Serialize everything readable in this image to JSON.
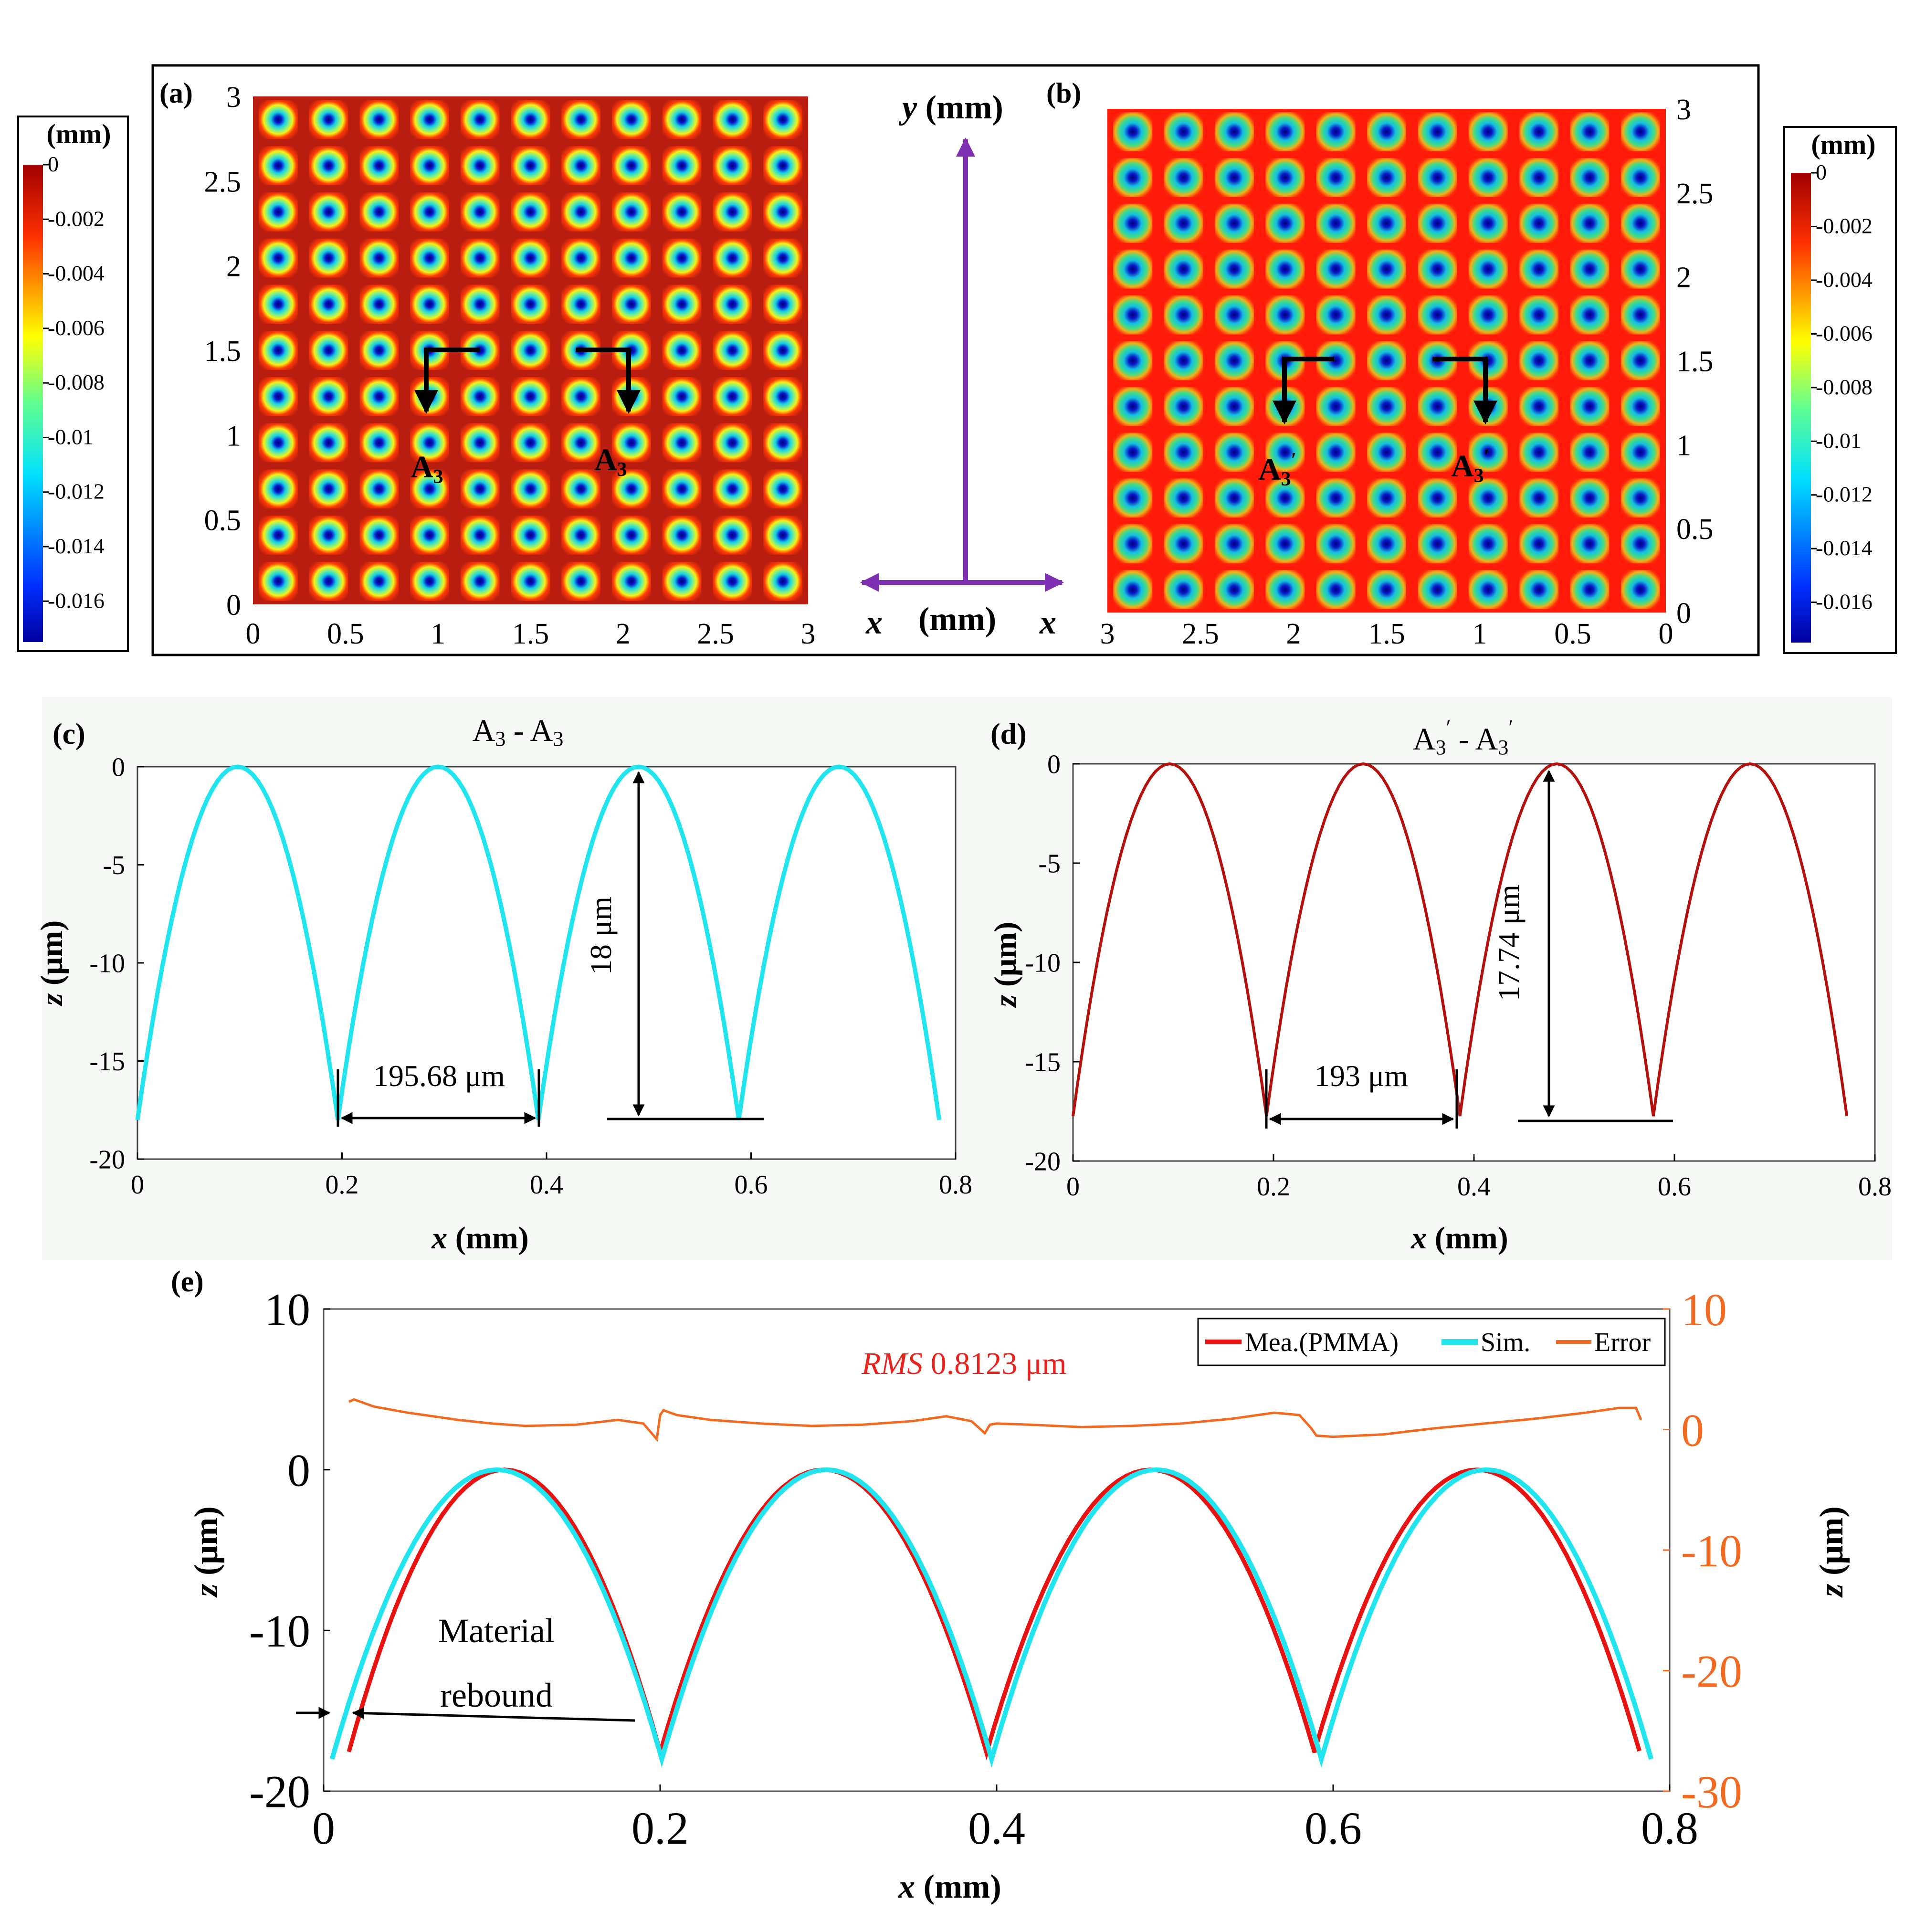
{
  "colors": {
    "map_high": "#ff1a0a",
    "map_high_a": "#b81d10",
    "map_low": "#0a16b8",
    "sim_line": "#20e4ee",
    "measured_line_d": "#b3110d",
    "measured_line_e": "#e81210",
    "error_line": "#f26a22",
    "right_axis": "#f26a22",
    "rms_text": "#e8231d",
    "axis_arrow": "#7e2fb2"
  },
  "colorbar": {
    "unit": "(mm)",
    "tick_values": [
      0,
      -0.002,
      -0.004,
      -0.006,
      -0.008,
      -0.01,
      -0.012,
      -0.014,
      -0.016
    ],
    "tick_labels": [
      "0",
      "-0.002",
      "-0.004",
      "-0.006",
      "-0.008",
      "-0.01",
      "-0.012",
      "-0.014",
      "-0.016"
    ],
    "range": [
      -0.0175,
      0
    ],
    "colormap": "jet"
  },
  "panel_a": {
    "label": "(a)",
    "section_label_left": "A",
    "section_label_right": "A",
    "section_subscript": "3",
    "x_ticks": [
      "0",
      "0.5",
      "1",
      "1.5",
      "2",
      "2.5",
      "3"
    ],
    "y_ticks": [
      "0",
      "0.5",
      "1",
      "1.5",
      "2",
      "2.5",
      "3"
    ]
  },
  "panel_b": {
    "label": "(b)",
    "section_label_left": "A",
    "section_label_right": "A",
    "section_subscript": "3",
    "section_prime": "′",
    "x_ticks": [
      "3",
      "2.5",
      "2",
      "1.5",
      "1",
      "0.5",
      "0"
    ],
    "y_ticks": [
      "0",
      "0.5",
      "1",
      "1.5",
      "2",
      "2.5",
      "3"
    ]
  },
  "axis_legend": {
    "y_var": "y",
    "y_unit": "(mm)",
    "x_var": "x",
    "x_unit": "(mm)"
  },
  "panel_c": {
    "label": "(c)",
    "title_part1": "A",
    "title_sub1": "3",
    "title_dash": " - ",
    "title_part2": "A",
    "title_sub2": "3",
    "xlabel_var": "x",
    "xlabel_unit": " (mm)",
    "ylabel_var": "z",
    "ylabel_unit": " (μm)",
    "x_ticks": [
      "0",
      "0.2",
      "0.4",
      "0.6",
      "0.8"
    ],
    "y_ticks": [
      "0",
      "-5",
      "-10",
      "-15",
      "-20"
    ],
    "annotation_width": "195.68 μm",
    "annotation_depth": "18 μm"
  },
  "panel_d": {
    "label": "(d)",
    "title_part1": "A",
    "title_sub1": "3",
    "title_prime1": "′",
    "title_dash": " - ",
    "title_part2": "A",
    "title_sub2": "3",
    "title_prime2": "′",
    "xlabel_var": "x",
    "xlabel_unit": " (mm)",
    "ylabel_var": "z",
    "ylabel_unit": " (μm)",
    "x_ticks": [
      "0",
      "0.2",
      "0.4",
      "0.6",
      "0.8"
    ],
    "y_ticks": [
      "0",
      "-5",
      "-10",
      "-15",
      "-20"
    ],
    "annotation_width": "193 μm",
    "annotation_depth": "17.74 μm"
  },
  "panel_e": {
    "label": "(e)",
    "xlabel_var": "x",
    "xlabel_unit": " (mm)",
    "ylabel_var": "z",
    "ylabel_unit": " (μm)",
    "ylabel_right_var": "z",
    "ylabel_right_unit": " (μm)",
    "x_ticks": [
      "0",
      "0.2",
      "0.4",
      "0.6",
      "0.8"
    ],
    "y_ticks": [
      "10",
      "0",
      "-10",
      "-20"
    ],
    "y_right_ticks": [
      "10",
      "0",
      "-10",
      "-20",
      "-30"
    ],
    "legend": [
      "Mea.(PMMA)",
      "Sim.",
      "Error"
    ],
    "rms_label": "RMS",
    "rms_value": " 0.8123 μm",
    "annotation_line1": "Material",
    "annotation_line2": "rebound"
  },
  "chart_data": [
    {
      "panel": "a",
      "type": "heatmap",
      "grid": [
        11,
        11
      ],
      "xlim": [
        0,
        3
      ],
      "ylim": [
        0,
        3
      ],
      "pitch_mm": 0.27,
      "min_value": -0.0175,
      "max_value": 0
    },
    {
      "panel": "b",
      "type": "heatmap",
      "grid": [
        11,
        11
      ],
      "xlim": [
        3,
        0
      ],
      "ylim": [
        0,
        3
      ],
      "pitch_mm": 0.27,
      "min_value": -0.0175,
      "max_value": 0
    },
    {
      "panel": "c",
      "type": "line",
      "xlim": [
        0,
        0.8
      ],
      "ylim": [
        -20,
        0
      ],
      "series": [
        {
          "x": [
            0,
            0.0245,
            0.049,
            0.0735,
            0.098,
            0.1225,
            0.147,
            0.1715,
            0.196,
            0.2205,
            0.245,
            0.2695,
            0.294,
            0.3185,
            0.343,
            0.3675,
            0.392,
            0.4165,
            0.441,
            0.4655,
            0.49,
            0.5145,
            0.539,
            0.5635,
            0.588,
            0.6125,
            0.637,
            0.6615,
            0.686,
            0.7105,
            0.735,
            0.7595,
            0.784
          ],
          "y": [
            -18,
            -10.1,
            -4.5,
            -1.1,
            0,
            -1.1,
            -4.5,
            -10.1,
            -18,
            -10.1,
            -4.5,
            -1.1,
            0,
            -1.1,
            -4.5,
            -10.1,
            -18,
            -10.1,
            -4.5,
            -1.1,
            0,
            -1.1,
            -4.5,
            -10.1,
            -18,
            -10.1,
            -4.5,
            -1.1,
            0,
            -1.1,
            -4.5,
            -10.1,
            -18
          ]
        }
      ]
    },
    {
      "panel": "d",
      "type": "line",
      "xlim": [
        0,
        0.8
      ],
      "ylim": [
        -20,
        0
      ],
      "series": [
        {
          "x": [
            0,
            0.0241,
            0.0483,
            0.0724,
            0.0965,
            0.1206,
            0.1448,
            0.1689,
            0.193,
            0.2171,
            0.2413,
            0.2654,
            0.2895,
            0.3136,
            0.3378,
            0.3619,
            0.386,
            0.4101,
            0.4343,
            0.4584,
            0.4825,
            0.5066,
            0.5308,
            0.5549,
            0.579,
            0.6031,
            0.6273,
            0.6514,
            0.6755,
            0.6996,
            0.7238,
            0.7479,
            0.772
          ],
          "y": [
            -17.74,
            -10.1,
            -4.6,
            -1.2,
            0,
            -1.2,
            -4.6,
            -10.1,
            -17.74,
            -10.1,
            -4.6,
            -1.2,
            0,
            -1.2,
            -4.6,
            -10.1,
            -17.74,
            -10.1,
            -4.6,
            -1.2,
            0,
            -1.2,
            -4.6,
            -10.1,
            -17.74,
            -10.1,
            -4.6,
            -1.2,
            0,
            -1.2,
            -4.6,
            -10.1,
            -17.74
          ]
        }
      ]
    },
    {
      "panel": "e",
      "type": "line",
      "xlim": [
        0,
        0.8
      ],
      "ylim": [
        -20,
        10
      ],
      "y2lim": [
        -30,
        10
      ],
      "series": [
        {
          "name": "Mea.(PMMA)",
          "axis": "left",
          "x": [
            0.015,
            0.039,
            0.063,
            0.088,
            0.112,
            0.136,
            0.16,
            0.184,
            0.2,
            0.224,
            0.249,
            0.273,
            0.297,
            0.321,
            0.346,
            0.37,
            0.394,
            0.418,
            0.443,
            0.467,
            0.491,
            0.515,
            0.539,
            0.564,
            0.589,
            0.613,
            0.637,
            0.661,
            0.685,
            0.71,
            0.734,
            0.758,
            0.782
          ],
          "y": [
            -17.5,
            -10.4,
            -4.9,
            -1.4,
            -0.2,
            -1.5,
            -5.0,
            -10.7,
            -17.6,
            -10.3,
            -4.8,
            -1.3,
            -0.1,
            -1.4,
            -5.0,
            -10.6,
            -17.6,
            -10.3,
            -4.8,
            -1.3,
            -0.1,
            -1.5,
            -5.0,
            -10.6,
            -17.6,
            -10.3,
            -4.8,
            -1.3,
            -0.1,
            -1.6,
            -5.2,
            -10.9,
            -17.4
          ]
        },
        {
          "name": "Sim.",
          "axis": "left",
          "x": [
            0.005,
            0.0295,
            0.054,
            0.0785,
            0.103,
            0.1275,
            0.152,
            0.1765,
            0.201,
            0.2255,
            0.25,
            0.2745,
            0.299,
            0.3235,
            0.348,
            0.3725,
            0.397,
            0.4215,
            0.446,
            0.4705,
            0.495,
            0.5195,
            0.544,
            0.5685,
            0.593,
            0.6175,
            0.642,
            0.6665,
            0.691,
            0.7155,
            0.74,
            0.7645,
            0.789
          ],
          "y": [
            -18,
            -10.1,
            -4.5,
            -1.1,
            0,
            -1.1,
            -4.5,
            -10.1,
            -18,
            -10.1,
            -4.5,
            -1.1,
            0,
            -1.1,
            -4.5,
            -10.1,
            -18,
            -10.1,
            -4.5,
            -1.1,
            0,
            -1.1,
            -4.5,
            -10.1,
            -18,
            -10.1,
            -4.5,
            -1.1,
            0,
            -1.1,
            -4.5,
            -10.1,
            -18
          ]
        },
        {
          "name": "Error",
          "axis": "right",
          "x": [
            0.015,
            0.018,
            0.03,
            0.05,
            0.08,
            0.1,
            0.12,
            0.15,
            0.175,
            0.19,
            0.198,
            0.2,
            0.202,
            0.21,
            0.23,
            0.26,
            0.29,
            0.32,
            0.35,
            0.37,
            0.385,
            0.393,
            0.396,
            0.4,
            0.42,
            0.45,
            0.48,
            0.51,
            0.54,
            0.565,
            0.58,
            0.587,
            0.59,
            0.6,
            0.63,
            0.66,
            0.69,
            0.72,
            0.75,
            0.77,
            0.78,
            0.783
          ],
          "y": [
            2.3,
            2.5,
            1.9,
            1.4,
            0.8,
            0.5,
            0.3,
            0.4,
            0.8,
            0.5,
            -0.8,
            1.2,
            1.6,
            1.2,
            0.8,
            0.5,
            0.3,
            0.4,
            0.7,
            1.1,
            0.7,
            -0.3,
            0.4,
            0.5,
            0.4,
            0.2,
            0.3,
            0.5,
            0.9,
            1.4,
            1.2,
            0.1,
            -0.5,
            -0.6,
            -0.4,
            0.1,
            0.5,
            0.9,
            1.4,
            1.8,
            1.8,
            0.8
          ]
        }
      ]
    }
  ]
}
